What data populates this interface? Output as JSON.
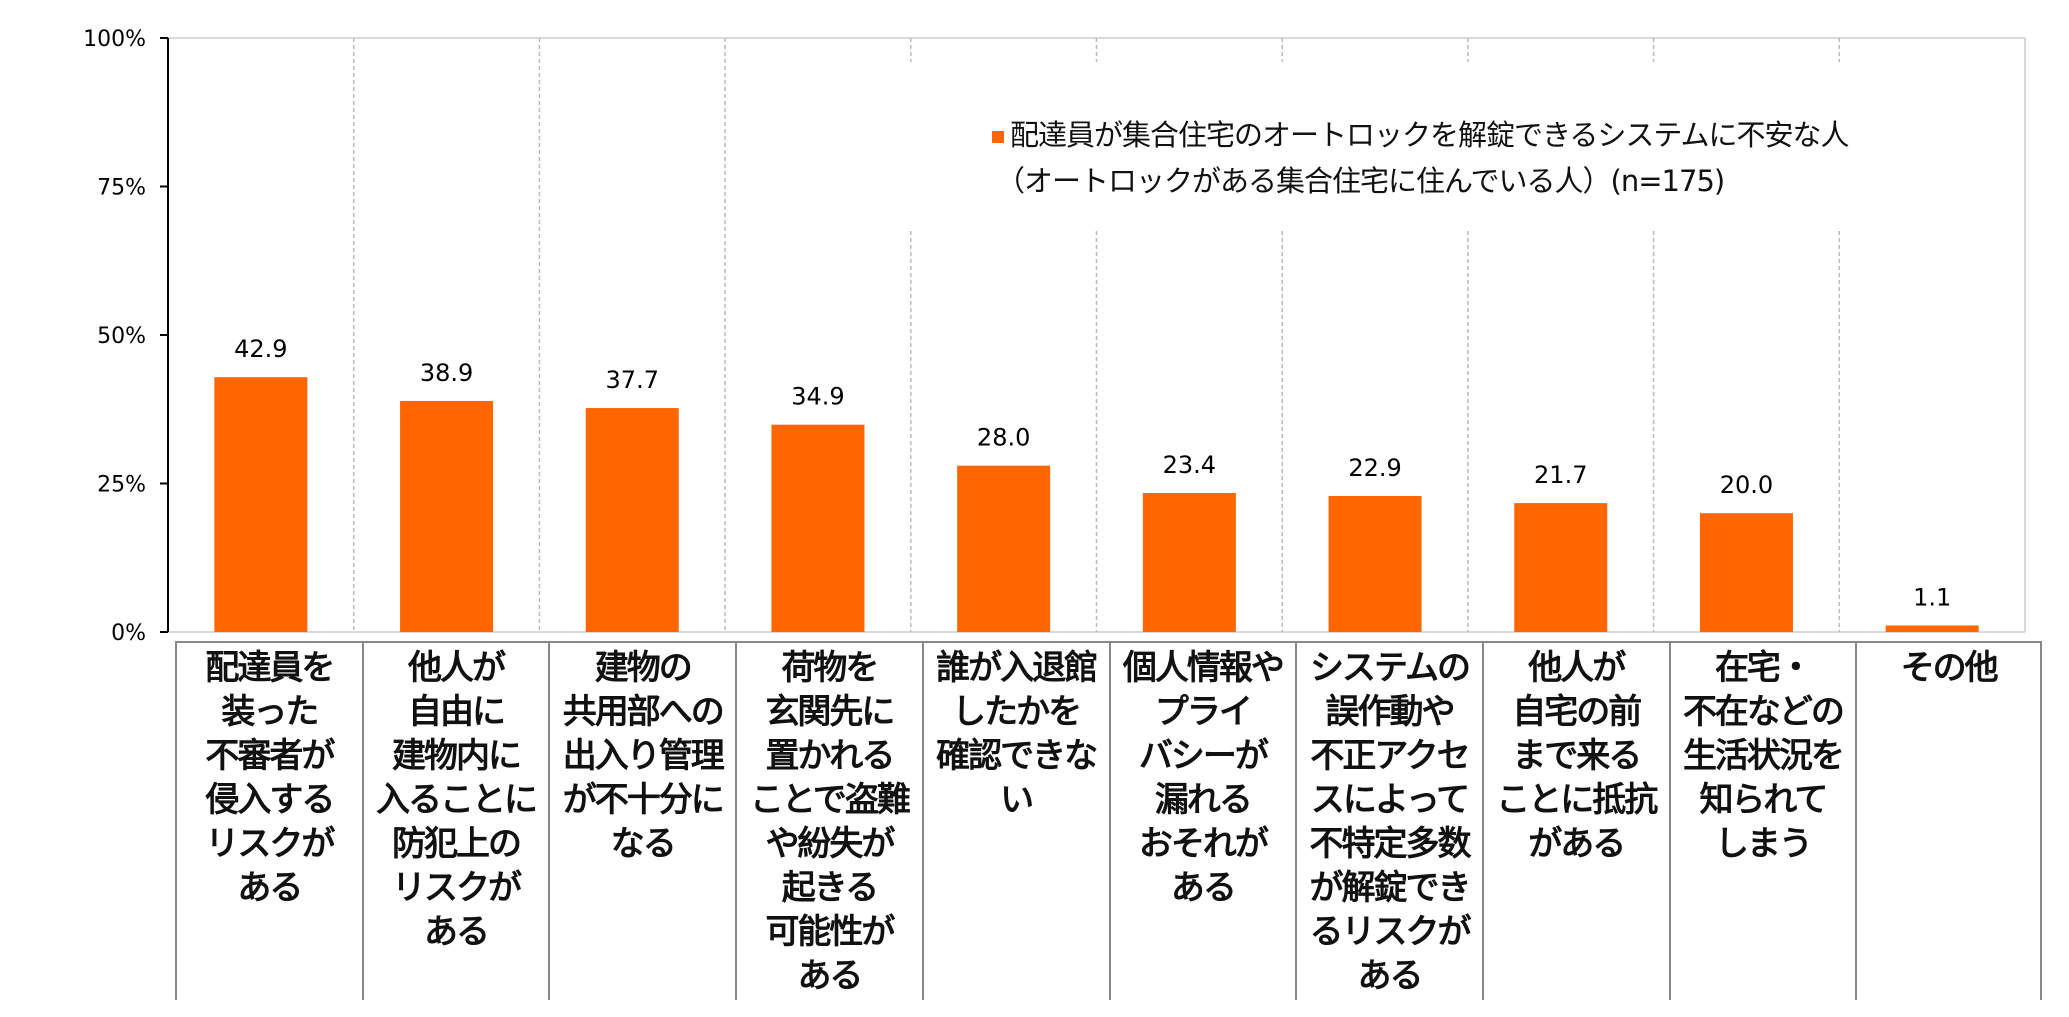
{
  "chart_data": {
    "type": "bar",
    "title": "",
    "legend": {
      "line1": "配達員が集合住宅のオートロックを解錠できるシステムに不安な人",
      "line2": "（オートロックがある集合住宅に住んでいる人）(n=175)",
      "position": "top-right"
    },
    "categories": [
      "配達員を\n装った\n不審者が\n侵入する\nリスクが\nある",
      "他人が\n自由に\n建物内に\n入ることに\n防犯上の\nリスクが\nある",
      "建物の\n共用部への\n出入り管理\nが不十分に\nなる",
      "荷物を\n玄関先に\n置かれる\nことで盗難\nや紛失が\n起きる\n可能性が\nある",
      "誰が入退館\nしたかを\n確認できな\nい",
      "個人情報や\nプライ\nバシーが\n漏れる\nおそれが\nある",
      "システムの\n誤作動や\n不正アクセ\nスによって\n不特定多数\nが解錠でき\nるリスクが\nある",
      "他人が\n自宅の前\nまで来る\nことに抵抗\nがある",
      "在宅・\n不在などの\n生活状況を\n知られて\nしまう",
      "その他"
    ],
    "values": [
      42.9,
      38.9,
      37.7,
      34.9,
      28.0,
      23.4,
      22.9,
      21.7,
      20.0,
      1.1
    ],
    "value_labels": [
      "42.9",
      "38.9",
      "37.7",
      "34.9",
      "28.0",
      "23.4",
      "22.9",
      "21.7",
      "20.0",
      "1.1"
    ],
    "yticks": [
      "0%",
      "25%",
      "50%",
      "75%",
      "100%"
    ],
    "ytick_values": [
      0,
      25,
      50,
      75,
      100
    ],
    "ylim": [
      0,
      100
    ],
    "xlabel": "",
    "ylabel": "",
    "bar_color": "#ff6600",
    "grid": "vertical dashed separators"
  }
}
